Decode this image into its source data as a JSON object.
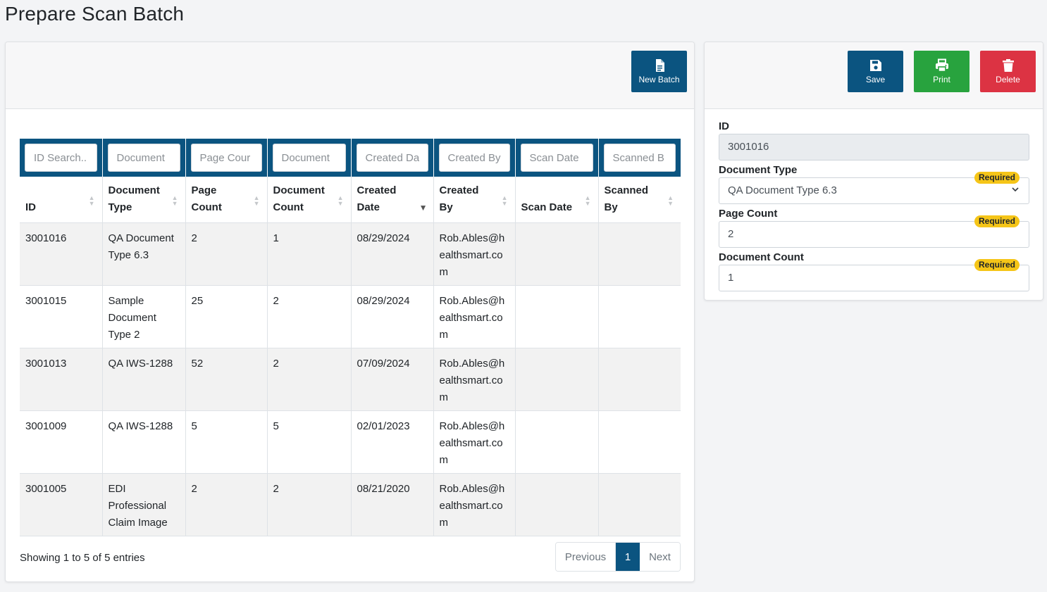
{
  "page": {
    "title": "Prepare Scan Batch"
  },
  "left_toolbar": {
    "new_batch_label": "New Batch"
  },
  "right_toolbar": {
    "save_label": "Save",
    "print_label": "Print",
    "delete_label": "Delete"
  },
  "table": {
    "filters": [
      "ID Search..",
      "Document",
      "Page Cour",
      "Document",
      "Created Da",
      "Created By",
      "Scan Date",
      "Scanned B"
    ],
    "headers": [
      {
        "line1": "",
        "line2": "ID"
      },
      {
        "line1": "Document",
        "line2": "Type"
      },
      {
        "line1": "Page",
        "line2": "Count"
      },
      {
        "line1": "Document",
        "line2": "Count"
      },
      {
        "line1": "Created",
        "line2": "Date"
      },
      {
        "line1": "Created",
        "line2": "By"
      },
      {
        "line1": "",
        "line2": "Scan Date"
      },
      {
        "line1": "Scanned",
        "line2": "By"
      }
    ],
    "sorted_column": "Created Date",
    "sort_direction": "desc",
    "rows": [
      [
        "3001016",
        "QA Document Type 6.3",
        "2",
        "1",
        "08/29/2024",
        "Rob.Ables@healthsmart.com",
        "",
        ""
      ],
      [
        "3001015",
        "Sample Document Type 2",
        "25",
        "2",
        "08/29/2024",
        "Rob.Ables@healthsmart.com",
        "",
        ""
      ],
      [
        "3001013",
        "QA IWS-1288",
        "52",
        "2",
        "07/09/2024",
        "Rob.Ables@healthsmart.com",
        "",
        ""
      ],
      [
        "3001009",
        "QA IWS-1288",
        "5",
        "5",
        "02/01/2023",
        "Rob.Ables@healthsmart.com",
        "",
        ""
      ],
      [
        "3001005",
        "EDI Professional Claim Image",
        "2",
        "2",
        "08/21/2020",
        "Rob.Ables@healthsmart.com",
        "",
        ""
      ]
    ]
  },
  "footer": {
    "showing": "Showing 1 to 5 of 5 entries",
    "prev": "Previous",
    "page": "1",
    "next": "Next"
  },
  "form": {
    "id_label": "ID",
    "id_value": "3001016",
    "doc_type_label": "Document Type",
    "doc_type_value": "QA Document Type 6.3",
    "page_count_label": "Page Count",
    "page_count_value": "2",
    "doc_count_label": "Document Count",
    "doc_count_value": "1",
    "required_badge": "Required"
  },
  "colors": {
    "primary": "#0b5480",
    "success": "#28a33e",
    "danger": "#dc3343",
    "badge": "#f5c518"
  },
  "icons": [
    "file-icon",
    "save-icon",
    "print-icon",
    "trash-icon",
    "sort-icon",
    "chevron-down-icon"
  ]
}
